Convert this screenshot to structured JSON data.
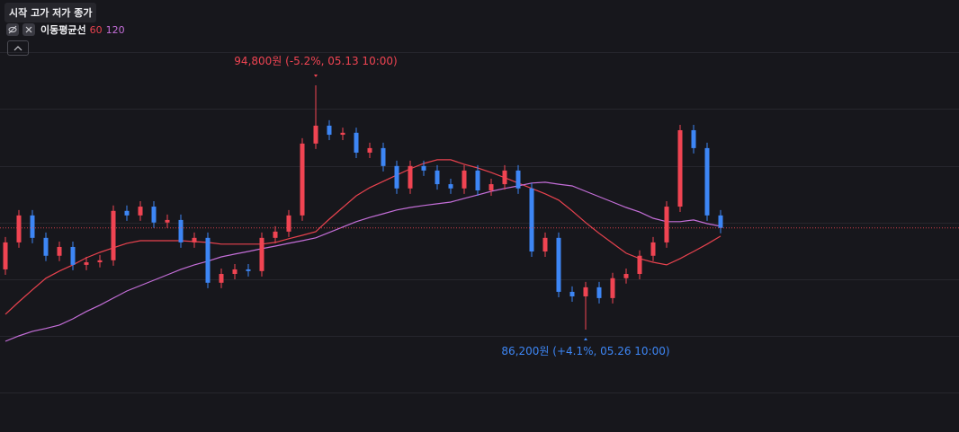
{
  "chart_data": {
    "type": "candlestick",
    "header": "시작 고가 저가 종가",
    "indicator": "이동평균선",
    "up_color": "#f04452",
    "down_color": "#3d86f5",
    "grid": true,
    "open": [
      88320,
      89270,
      90220,
      89430,
      88800,
      89110,
      88480,
      88570,
      88640,
      90380,
      90220,
      90530,
      89970,
      90060,
      89270,
      89430,
      87850,
      88160,
      88320,
      88260,
      89430,
      89650,
      90220,
      92750,
      93380,
      93060,
      93130,
      92430,
      92590,
      91960,
      91170,
      91960,
      91800,
      91320,
      91170,
      91800,
      91100,
      91320,
      91800,
      91170,
      88950,
      89430,
      87530,
      87370,
      87690,
      87310,
      88010,
      88160,
      88800,
      89270,
      90530,
      93220,
      92590,
      90220
    ],
    "high": [
      89460,
      90410,
      90410,
      89620,
      89300,
      89300,
      88760,
      88830,
      90570,
      90570,
      90720,
      90720,
      90250,
      90250,
      89620,
      89620,
      88350,
      88510,
      88510,
      89620,
      89840,
      90410,
      92940,
      94800,
      93570,
      93310,
      93310,
      92780,
      92780,
      92150,
      92150,
      92150,
      91990,
      91510,
      91990,
      91990,
      91510,
      91990,
      91990,
      91360,
      89620,
      89620,
      87720,
      87880,
      87880,
      88200,
      88350,
      88990,
      89460,
      90720,
      93410,
      93410,
      92780,
      90410
    ],
    "low": [
      88130,
      89080,
      89240,
      88610,
      88610,
      88290,
      88290,
      88390,
      88450,
      90030,
      90030,
      89780,
      89780,
      89080,
      89080,
      87660,
      87660,
      87970,
      88070,
      88070,
      89240,
      89460,
      90030,
      92560,
      92870,
      92870,
      92240,
      92240,
      91770,
      90980,
      90980,
      91610,
      91130,
      90980,
      90980,
      90910,
      90910,
      91130,
      90980,
      88760,
      88760,
      87340,
      87180,
      86200,
      87120,
      87120,
      87820,
      87970,
      88610,
      89080,
      90340,
      92400,
      90030,
      89590
    ],
    "close": [
      89270,
      90220,
      89430,
      88800,
      89110,
      88480,
      88570,
      88640,
      90380,
      90220,
      90530,
      89970,
      90060,
      89270,
      89430,
      87850,
      88160,
      88320,
      88260,
      89430,
      89650,
      90220,
      92750,
      93380,
      93060,
      93130,
      92430,
      92590,
      91960,
      91170,
      91960,
      91800,
      91320,
      91170,
      91800,
      91100,
      91320,
      91800,
      91170,
      88950,
      89430,
      87530,
      87370,
      87690,
      87310,
      88010,
      88160,
      88800,
      89270,
      90530,
      93220,
      92590,
      90220,
      89780
    ],
    "series": [
      {
        "name": "60",
        "color": "#e8424e",
        "values": [
          86740,
          87180,
          87600,
          88010,
          88260,
          88480,
          88730,
          88920,
          89080,
          89240,
          89330,
          89330,
          89330,
          89330,
          89300,
          89270,
          89210,
          89210,
          89210,
          89210,
          89270,
          89400,
          89520,
          89650,
          90090,
          90500,
          90910,
          91200,
          91420,
          91640,
          91860,
          92050,
          92180,
          92180,
          92020,
          91890,
          91730,
          91550,
          91360,
          91170,
          90980,
          90760,
          90380,
          89970,
          89590,
          89240,
          88890,
          88700,
          88570,
          88480,
          88700,
          88950,
          89210,
          89490
        ]
      },
      {
        "name": "120",
        "color": "#c46ed8",
        "values": [
          85790,
          85980,
          86140,
          86240,
          86360,
          86580,
          86840,
          87060,
          87310,
          87560,
          87750,
          87940,
          88130,
          88320,
          88480,
          88610,
          88760,
          88860,
          88950,
          89050,
          89140,
          89240,
          89330,
          89430,
          89620,
          89810,
          90000,
          90150,
          90280,
          90410,
          90500,
          90570,
          90630,
          90690,
          90820,
          90940,
          91070,
          91170,
          91260,
          91360,
          91390,
          91320,
          91260,
          91070,
          90880,
          90690,
          90500,
          90340,
          90120,
          90000,
          90000,
          90060,
          89930,
          89840
        ]
      }
    ],
    "annotations": [
      {
        "text": "94,800원 (-5.2%, 05.13 10:00)",
        "color": "#f04452"
      },
      {
        "text": "86,200원 (+4.1%, 05.26 10:00)",
        "color": "#3d86f5"
      }
    ]
  }
}
